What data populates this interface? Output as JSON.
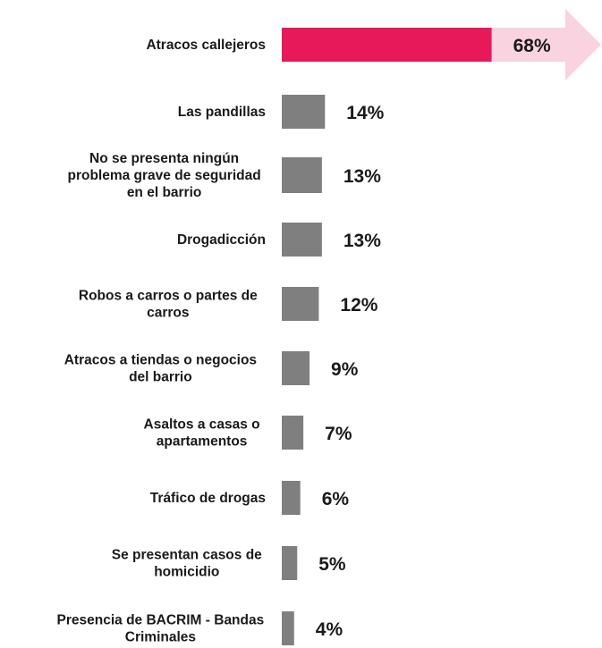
{
  "chart_data": {
    "type": "bar",
    "orientation": "horizontal",
    "categories": [
      "Atracos callejeros",
      "Las pandillas",
      "No se presenta ningún problema grave de seguridad en el barrio",
      "Drogadicción",
      "Robos a carros o partes de carros",
      "Atracos a tiendas o negocios del barrio",
      "Asaltos a casas o apartamentos",
      "Tráfico de drogas",
      "Se presentan casos de homicidio",
      "Presencia de BACRIM - Bandas Criminales"
    ],
    "category_lines": [
      [
        "Atracos callejeros"
      ],
      [
        "Las pandillas"
      ],
      [
        "No se presenta ningún",
        "problema grave de seguridad",
        "en el barrio"
      ],
      [
        "Drogadicción"
      ],
      [
        "Robos a carros o partes de",
        "carros"
      ],
      [
        "Atracos a tiendas o negocios",
        "del barrio"
      ],
      [
        "Asaltos a casas o",
        "apartamentos"
      ],
      [
        "Tráfico de drogas"
      ],
      [
        "Se presentan casos de",
        "homicidio"
      ],
      [
        "Presencia de BACRIM - Bandas",
        "Criminales"
      ]
    ],
    "values": [
      68,
      14,
      13,
      13,
      12,
      9,
      7,
      6,
      5,
      4
    ],
    "value_labels": [
      "68%",
      "14%",
      "13%",
      "13%",
      "12%",
      "9%",
      "7%",
      "6%",
      "5%",
      "4%"
    ],
    "highlight_index": 0,
    "title": "",
    "xlabel": "",
    "ylabel": "",
    "grid": false,
    "legend": "none"
  },
  "colors": {
    "highlight_bar": "#e8195a",
    "highlight_arrow": "#f9d3df",
    "bar": "#7f7f7f",
    "text": "#1a1a1a",
    "value_on_highlight": "#1a1a1a"
  }
}
